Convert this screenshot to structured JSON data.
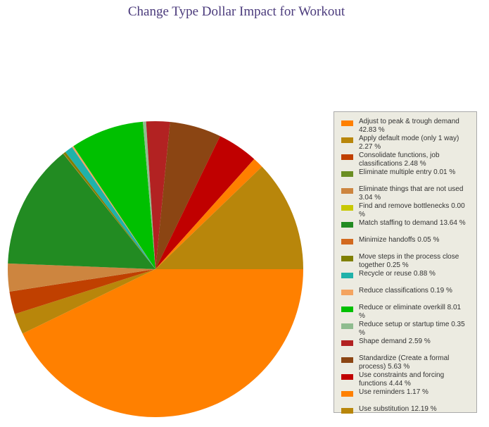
{
  "chart_data": {
    "type": "pie",
    "title": "Change Type Dollar Impact for Workout",
    "categories": [
      "Adjust to peak & trough demand",
      "Apply default mode (only 1 way)",
      "Consolidate functions, job classifications",
      "Eliminate multiple entry",
      "Eliminate things that are not used",
      "Find and remove bottlenecks",
      "Match staffing to demand",
      "Minimize handoffs",
      "Move steps in the process close together",
      "Recycle or reuse",
      "Reduce classifications",
      "Reduce or eliminate overkill",
      "Reduce setup or startup time",
      "Shape demand",
      "Standardize (Create a formal process)",
      "Use constraints and forcing functions",
      "Use reminders",
      "Use substitution"
    ],
    "values": [
      42.83,
      2.27,
      2.48,
      0.01,
      3.04,
      0.0,
      13.64,
      0.05,
      0.25,
      0.88,
      0.19,
      8.01,
      0.35,
      2.59,
      5.63,
      4.44,
      1.17,
      12.19
    ],
    "value_labels": [
      "42.83 %",
      "2.27 %",
      "2.48 %",
      "0.01 %",
      "3.04 %",
      "0.00 %",
      "13.64 %",
      "0.05 %",
      "0.25 %",
      "0.88 %",
      "0.19 %",
      "8.01 %",
      "0.35 %",
      "2.59 %",
      "5.63 %",
      "4.44 %",
      "1.17 %",
      "12.19 %"
    ],
    "colors": [
      "#ff8000",
      "#b8860b",
      "#c04000",
      "#6b8e23",
      "#cd853f",
      "#c8c800",
      "#228b22",
      "#d2691e",
      "#808000",
      "#20b2aa",
      "#f4a460",
      "#00c000",
      "#8fbc8f",
      "#b22222",
      "#8b4513",
      "#c00000",
      "#ff8000",
      "#b8860b"
    ]
  }
}
